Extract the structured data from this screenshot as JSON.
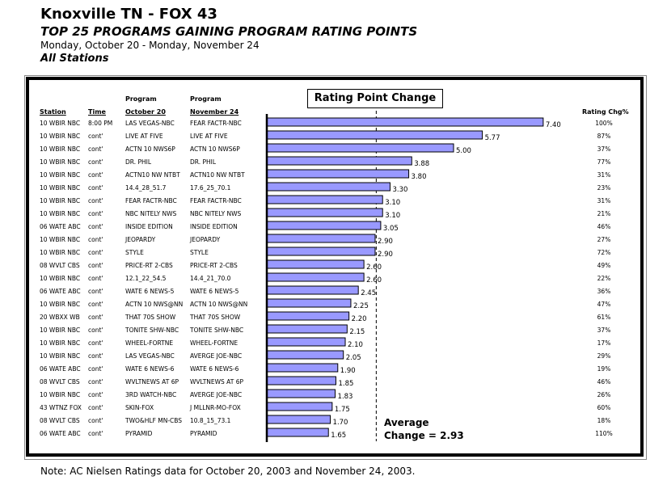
{
  "header": {
    "title": "Knoxville TN - FOX 43",
    "subtitle": "TOP 25 PROGRAMS GAINING PROGRAM RATING POINTS",
    "dates": "Monday, October 20 - Monday, November 24",
    "stations": "All Stations"
  },
  "columns": {
    "station": "Station",
    "time": "Time",
    "program_top": "Program",
    "oct": "October 20",
    "nov": "November 24",
    "rating_chg": "Rating Chg%"
  },
  "average": {
    "line1": "Average",
    "line2": "Change = 2.93"
  },
  "note": "Note: AC Nielsen Ratings data for October 20, 2003 and November 24, 2003.",
  "chart_data": {
    "type": "bar",
    "orientation": "horizontal",
    "title": "Rating Point Change",
    "average": 2.93,
    "bar_color": "#9999ff",
    "rows": [
      {
        "station": "10 WBIR NBC",
        "time": "8:00 PM",
        "oct": "LAS VEGAS-NBC",
        "nov": "FEAR FACTR-NBC",
        "value": 7.4,
        "label": "7.40",
        "pct": "100%"
      },
      {
        "station": "10 WBIR NBC",
        "time": "cont'",
        "oct": "LIVE AT FIVE",
        "nov": "LIVE AT FIVE",
        "value": 5.77,
        "label": "5.77",
        "pct": "87%"
      },
      {
        "station": "10 WBIR NBC",
        "time": "cont'",
        "oct": "ACTN 10 NWS6P",
        "nov": "ACTN 10 NWS6P",
        "value": 5.0,
        "label": "5.00",
        "pct": "37%"
      },
      {
        "station": "10 WBIR NBC",
        "time": "cont'",
        "oct": "DR. PHIL",
        "nov": "DR. PHIL",
        "value": 3.88,
        "label": "3.88",
        "pct": "77%"
      },
      {
        "station": "10 WBIR NBC",
        "time": "cont'",
        "oct": "ACTN10 NW NTBT",
        "nov": "ACTN10 NW NTBT",
        "value": 3.8,
        "label": "3.80",
        "pct": "31%"
      },
      {
        "station": "10 WBIR NBC",
        "time": "cont'",
        "oct": "14.4_28_51.7",
        "nov": "17.6_25_70.1",
        "value": 3.3,
        "label": "3.30",
        "pct": "23%"
      },
      {
        "station": "10 WBIR NBC",
        "time": "cont'",
        "oct": "FEAR FACTR-NBC",
        "nov": "FEAR FACTR-NBC",
        "value": 3.1,
        "label": "3.10",
        "pct": "31%"
      },
      {
        "station": "10 WBIR NBC",
        "time": "cont'",
        "oct": "NBC NITELY NWS",
        "nov": "NBC NITELY NWS",
        "value": 3.1,
        "label": "3.10",
        "pct": "21%"
      },
      {
        "station": "06 WATE ABC",
        "time": "cont'",
        "oct": "INSIDE EDITION",
        "nov": "INSIDE EDITION",
        "value": 3.05,
        "label": "3.05",
        "pct": "46%"
      },
      {
        "station": "10 WBIR NBC",
        "time": "cont'",
        "oct": "JEOPARDY",
        "nov": "JEOPARDY",
        "value": 2.9,
        "label": "2.90",
        "pct": "27%"
      },
      {
        "station": "10 WBIR NBC",
        "time": "cont'",
        "oct": "STYLE",
        "nov": "STYLE",
        "value": 2.9,
        "label": "2.90",
        "pct": "72%"
      },
      {
        "station": "08 WVLT CBS",
        "time": "cont'",
        "oct": "PRICE-RT 2-CBS",
        "nov": "PRICE-RT 2-CBS",
        "value": 2.6,
        "label": "2.60",
        "pct": "49%"
      },
      {
        "station": "10 WBIR NBC",
        "time": "cont'",
        "oct": "12.1_22_54.5",
        "nov": "14.4_21_70.0",
        "value": 2.6,
        "label": "2.60",
        "pct": "22%"
      },
      {
        "station": "06 WATE ABC",
        "time": "cont'",
        "oct": "WATE 6 NEWS-5",
        "nov": "WATE 6 NEWS-5",
        "value": 2.45,
        "label": "2.45",
        "pct": "36%"
      },
      {
        "station": "10 WBIR NBC",
        "time": "cont'",
        "oct": "ACTN 10 NWS@NN",
        "nov": "ACTN 10 NWS@NN",
        "value": 2.25,
        "label": "2.25",
        "pct": "47%"
      },
      {
        "station": "20 WBXX WB",
        "time": "cont'",
        "oct": "THAT 70S SHOW",
        "nov": "THAT 70S SHOW",
        "value": 2.2,
        "label": "2.20",
        "pct": "61%"
      },
      {
        "station": "10 WBIR NBC",
        "time": "cont'",
        "oct": "TONITE SHW-NBC",
        "nov": "TONITE SHW-NBC",
        "value": 2.15,
        "label": "2.15",
        "pct": "37%"
      },
      {
        "station": "10 WBIR NBC",
        "time": "cont'",
        "oct": "WHEEL-FORTNE",
        "nov": "WHEEL-FORTNE",
        "value": 2.1,
        "label": "2.10",
        "pct": "17%"
      },
      {
        "station": "10 WBIR NBC",
        "time": "cont'",
        "oct": "LAS VEGAS-NBC",
        "nov": "AVERGE JOE-NBC",
        "value": 2.05,
        "label": "2.05",
        "pct": "29%"
      },
      {
        "station": "06 WATE ABC",
        "time": "cont'",
        "oct": "WATE 6 NEWS-6",
        "nov": "WATE 6 NEWS-6",
        "value": 1.9,
        "label": "1.90",
        "pct": "19%"
      },
      {
        "station": "08 WVLT CBS",
        "time": "cont'",
        "oct": "WVLTNEWS AT 6P",
        "nov": "WVLTNEWS AT 6P",
        "value": 1.85,
        "label": "1.85",
        "pct": "46%"
      },
      {
        "station": "10 WBIR NBC",
        "time": "cont'",
        "oct": "3RD WATCH-NBC",
        "nov": "AVERGE JOE-NBC",
        "value": 1.83,
        "label": "1.83",
        "pct": "26%"
      },
      {
        "station": "43 WTNZ FOX",
        "time": "cont'",
        "oct": "SKIN-FOX",
        "nov": "J MLLNR-MO-FOX",
        "value": 1.75,
        "label": "1.75",
        "pct": "60%"
      },
      {
        "station": "08 WVLT CBS",
        "time": "cont'",
        "oct": "TWO&HLF MN-CBS",
        "nov": "10.8_15_73.1",
        "value": 1.7,
        "label": "1.70",
        "pct": "18%"
      },
      {
        "station": "06 WATE ABC",
        "time": "cont'",
        "oct": "PYRAMID",
        "nov": "PYRAMID",
        "value": 1.65,
        "label": "1.65",
        "pct": "110%"
      }
    ]
  }
}
